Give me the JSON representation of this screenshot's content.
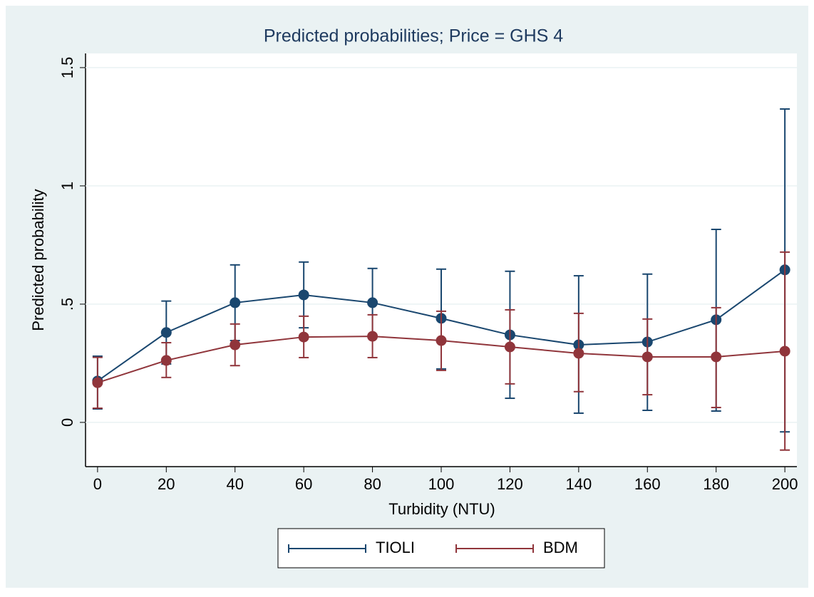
{
  "chart_data": {
    "type": "line",
    "title": "Predicted probabilities; Price = GHS 4",
    "x_label": "Turbidity (NTU)",
    "y_label": "Predicted probability",
    "x": [
      0,
      20,
      40,
      60,
      80,
      100,
      120,
      140,
      160,
      180,
      200
    ],
    "series": [
      {
        "name": "TIOLI",
        "color": "#1a476f",
        "values": [
          0.175,
          0.38,
          0.506,
          0.539,
          0.506,
          0.44,
          0.37,
          0.328,
          0.34,
          0.434,
          0.645
        ],
        "low": [
          0.057,
          0.247,
          0.346,
          0.4,
          0.361,
          0.226,
          0.102,
          0.039,
          0.051,
          0.048,
          -0.04
        ],
        "high": [
          0.28,
          0.513,
          0.666,
          0.678,
          0.651,
          0.648,
          0.639,
          0.62,
          0.627,
          0.816,
          1.325
        ]
      },
      {
        "name": "BDM",
        "color": "#90353b",
        "values": [
          0.168,
          0.262,
          0.328,
          0.361,
          0.364,
          0.346,
          0.319,
          0.292,
          0.277,
          0.277,
          0.301
        ],
        "low": [
          0.06,
          0.19,
          0.24,
          0.274,
          0.274,
          0.22,
          0.163,
          0.13,
          0.117,
          0.063,
          -0.117
        ],
        "high": [
          0.275,
          0.337,
          0.416,
          0.449,
          0.455,
          0.47,
          0.476,
          0.461,
          0.437,
          0.485,
          0.72
        ]
      }
    ],
    "xlim": [
      -3.5,
      203.5
    ],
    "xticks": [
      0,
      20,
      40,
      60,
      80,
      100,
      120,
      140,
      160,
      180,
      200
    ],
    "ylim": [
      -0.187,
      1.56
    ],
    "yticks": [
      0,
      {
        "value": 0.5,
        "label": ".5"
      },
      1,
      1.5
    ],
    "grid": true
  }
}
